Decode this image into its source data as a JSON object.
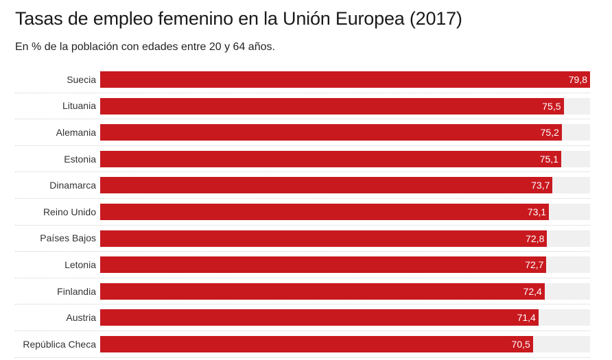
{
  "header": {
    "title": "Tasas de empleo femenino en la Unión Europea (2017)",
    "subtitle": "En % de la población con edades entre 20 y 64 años."
  },
  "colors": {
    "bar": "#c8191f",
    "track": "#f0f0f0"
  },
  "chart_data": {
    "type": "bar",
    "orientation": "horizontal",
    "title": "Tasas de empleo femenino en la Unión Europea (2017)",
    "subtitle": "En % de la población con edades entre 20 y 64 años.",
    "xlabel": "",
    "ylabel": "",
    "xlim": [
      0,
      79.8
    ],
    "grid": false,
    "legend": "none",
    "categories": [
      "Suecia",
      "Lituania",
      "Alemania",
      "Estonia",
      "Dinamarca",
      "Reino Unido",
      "Países Bajos",
      "Letonia",
      "Finlandia",
      "Austria",
      "República Checa"
    ],
    "values": [
      79.8,
      75.5,
      75.2,
      75.1,
      73.7,
      73.1,
      72.8,
      72.7,
      72.4,
      71.4,
      70.5
    ],
    "value_labels": [
      "79,8",
      "75,5",
      "75,2",
      "75,1",
      "73,7",
      "73,1",
      "72,8",
      "72,7",
      "72,4",
      "71,4",
      "70,5"
    ]
  }
}
